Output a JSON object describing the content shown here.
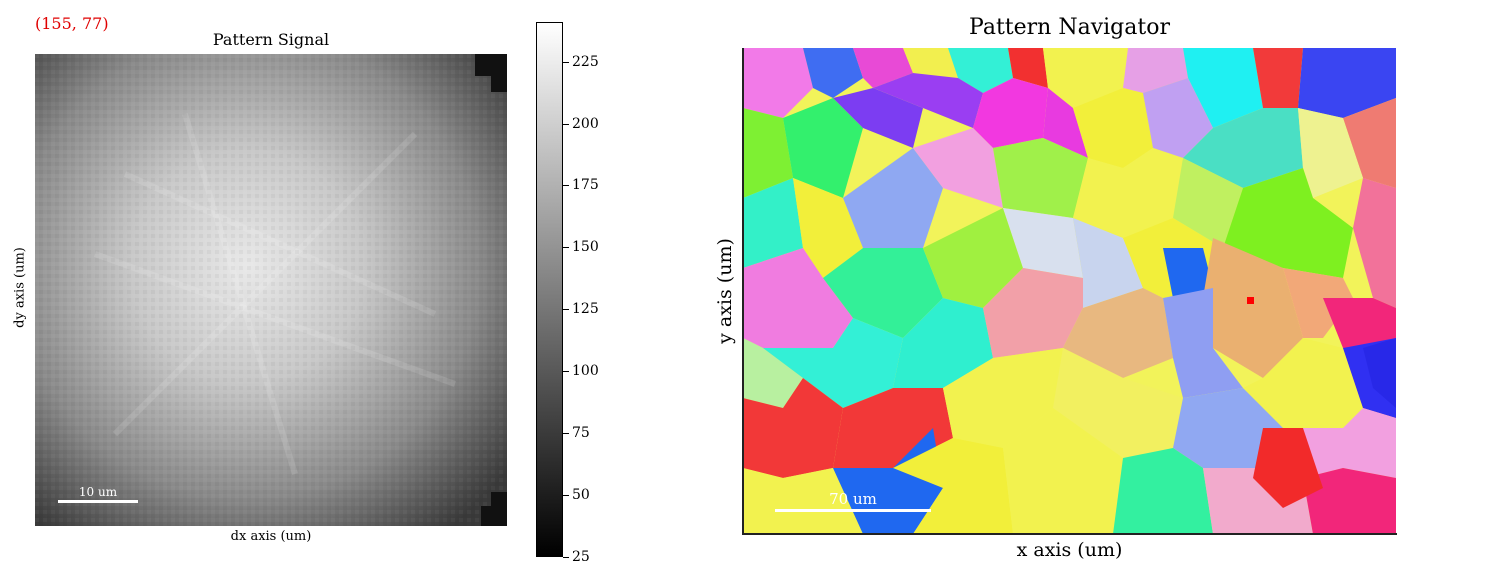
{
  "coordinate_readout": "(155, 77)",
  "signal_panel": {
    "title": "Pattern Signal",
    "xlabel": "dx axis (um)",
    "ylabel": "dy axis (um)",
    "scalebar_label": "10 um"
  },
  "colorbar": {
    "min": 25,
    "max": 241,
    "tick_labels": [
      "25",
      "50",
      "75",
      "100",
      "125",
      "150",
      "175",
      "200",
      "225"
    ],
    "tick_values": [
      25,
      50,
      75,
      100,
      125,
      150,
      175,
      200,
      225
    ],
    "colormap": "gray"
  },
  "navigator_panel": {
    "title": "Pattern Navigator",
    "xlabel": "x axis (um)",
    "ylabel": "y axis (um)",
    "scalebar_label": "70 um",
    "marker_color": "#ff0000"
  },
  "colors": {
    "readout": "#e00000",
    "scalebar": "#ffffff"
  }
}
